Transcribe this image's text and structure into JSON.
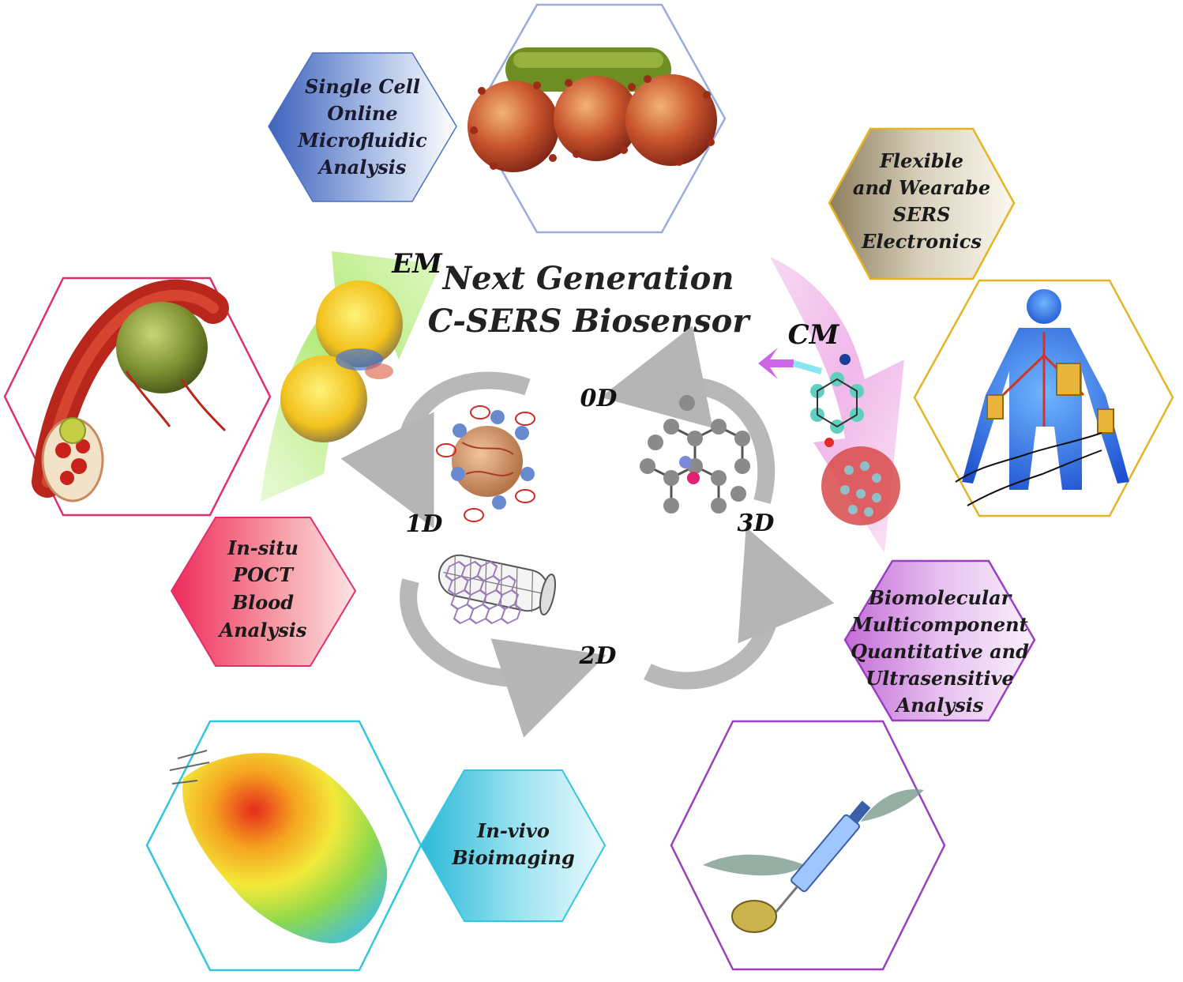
{
  "title": {
    "line1": "Next Generation",
    "line2": "C-SERS Biosensor"
  },
  "mechanisms": {
    "em": "EM",
    "cm": "CM"
  },
  "dimensions": {
    "d0": "0D",
    "d1": "1D",
    "d2": "2D",
    "d3": "3D"
  },
  "applications": {
    "single_cell": [
      "Single Cell",
      "Online",
      "Microfluidic",
      "Analysis"
    ],
    "flexible": [
      "Flexible",
      "and Wearabe",
      "SERS",
      "Electronics"
    ],
    "poct": [
      "In-situ",
      "POCT",
      "Blood",
      "Analysis"
    ],
    "biomolecular": [
      "Biomolecular",
      "Multicomponent",
      "Quantitative and",
      "Ultrasensitive",
      "Analysis"
    ],
    "invivo": [
      "In-vivo",
      "Bioimaging"
    ]
  },
  "colors": {
    "blue": "#4a6fc2",
    "gold": "#e6b422",
    "crimson": "#e0306a",
    "violet": "#9a3fc0",
    "cyan": "#34c6e0",
    "em_arrow": "#b8ec7a",
    "cm_arrow": "#f4c0ef"
  }
}
